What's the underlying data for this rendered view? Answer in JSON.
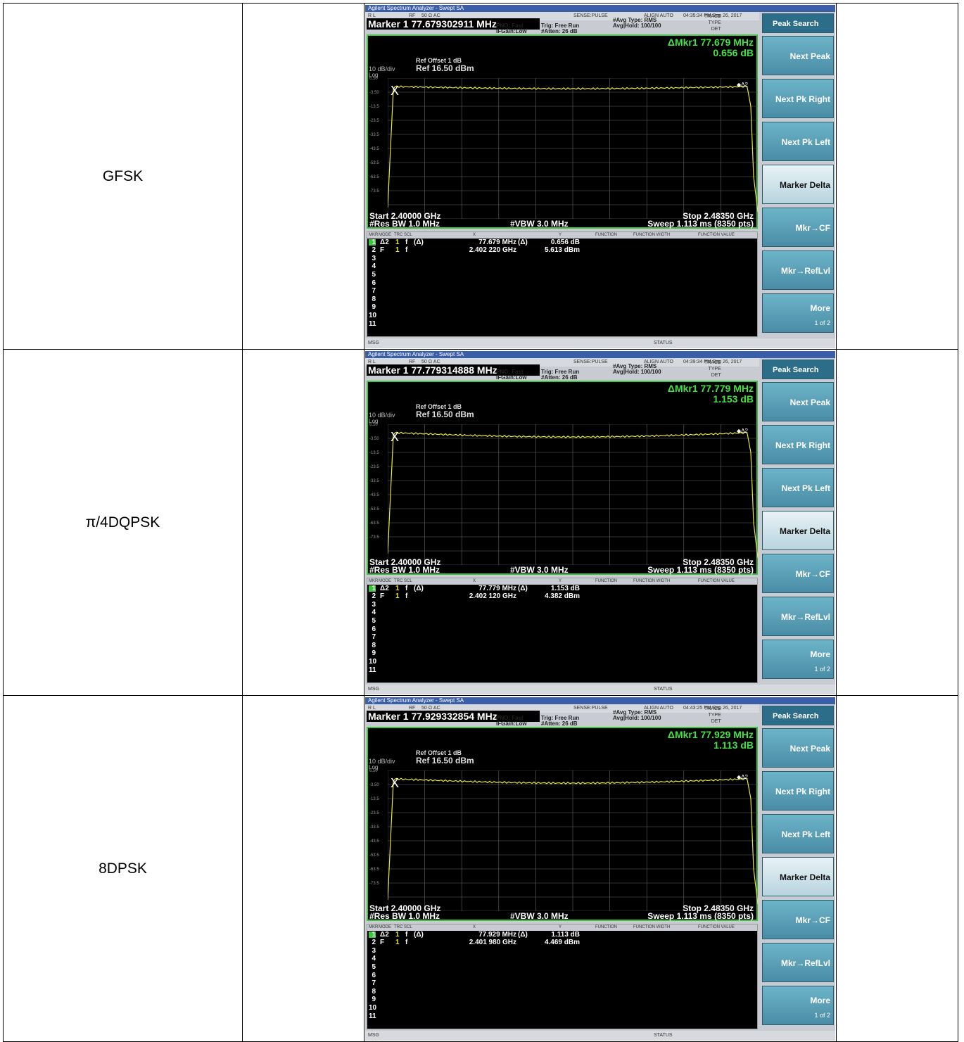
{
  "rows": [
    {
      "modulation": "GFSK",
      "screen": {
        "title": "Agilent Spectrum Analyzer - Swept SA",
        "status": {
          "rl": "R L",
          "rf": "RF",
          "ohm": "50 Ω  AC",
          "sense": "SENSE:PULSE",
          "align": "ALIGN AUTO",
          "time": "04:35:34 PM Sep 26, 2017"
        },
        "marker": "Marker 1 77.679302911 MHz",
        "pno": "PNO: Fast",
        "ifgain": "IFGain:Low",
        "trig": "Trig: Free Run",
        "atten": "#Atten: 26 dB",
        "avgtype": "#Avg Type: RMS",
        "avghold": "Avg|Hold: 100/100",
        "trace_labels": "TRACE\nTYPE\nDET",
        "ref_offset": "Ref Offset 1 dB",
        "scale": "10 dB/div",
        "ref": "Ref 16.50 dBm",
        "log": "Log",
        "delta_marker": "ΔMkr1 77.679 MHz",
        "delta_value": "0.656 dB",
        "y_ticks": [
          "6.50",
          "-3.50",
          "-13.5",
          "-23.5",
          "-33.5",
          "-43.5",
          "-53.5",
          "-63.5",
          "-73.5"
        ],
        "start": "Start 2.40000 GHz",
        "stop": "Stop 2.48350 GHz",
        "rbw": "#Res BW 1.0 MHz",
        "vbw": "#VBW 3.0 MHz",
        "sweep": "Sweep  1.113 ms (8350 pts)",
        "table_headers": [
          "MKR",
          "MODE",
          "TRC",
          "SCL",
          "X",
          "Y",
          "FUNCTION",
          "FUNCTION WIDTH",
          "FUNCTION VALUE"
        ],
        "markers": [
          {
            "n": "1",
            "mode": "Δ2",
            "trc": "1",
            "scl": "f",
            "dx": "(Δ)",
            "x": "77.679 MHz",
            "dy": "(Δ)",
            "y": "0.656 dB"
          },
          {
            "n": "2",
            "mode": "F",
            "trc": "1",
            "scl": "f",
            "dx": "",
            "x": "2.402 220 GHz",
            "dy": "",
            "y": "5.613 dBm"
          }
        ],
        "msg": "MSG",
        "statuslbl": "STATUS"
      }
    },
    {
      "modulation": "π/4DQPSK",
      "screen": {
        "title": "Agilent Spectrum Analyzer - Swept SA",
        "status": {
          "rl": "R L",
          "rf": "RF",
          "ohm": "50 Ω  AC",
          "sense": "SENSE:PULSE",
          "align": "ALIGN AUTO",
          "time": "04:39:34 PM Sep 26, 2017"
        },
        "marker": "Marker 1 77.779314888 MHz",
        "pno": "PNO: Fast",
        "ifgain": "IFGain:Low",
        "trig": "Trig: Free Run",
        "atten": "#Atten: 26 dB",
        "avgtype": "#Avg Type: RMS",
        "avghold": "Avg|Hold: 100/100",
        "trace_labels": "TRACE\nTYPE\nDET",
        "ref_offset": "Ref Offset 1 dB",
        "scale": "10 dB/div",
        "ref": "Ref 16.50 dBm",
        "log": "Log",
        "delta_marker": "ΔMkr1 77.779 MHz",
        "delta_value": "1.153 dB",
        "y_ticks": [
          "6.50",
          "-3.50",
          "-13.5",
          "-23.5",
          "-33.5",
          "-43.5",
          "-53.5",
          "-63.5",
          "-73.5"
        ],
        "start": "Start 2.40000 GHz",
        "stop": "Stop 2.48350 GHz",
        "rbw": "#Res BW 1.0 MHz",
        "vbw": "#VBW 3.0 MHz",
        "sweep": "Sweep  1.113 ms (8350 pts)",
        "table_headers": [
          "MKR",
          "MODE",
          "TRC",
          "SCL",
          "X",
          "Y",
          "FUNCTION",
          "FUNCTION WIDTH",
          "FUNCTION VALUE"
        ],
        "markers": [
          {
            "n": "1",
            "mode": "Δ2",
            "trc": "1",
            "scl": "f",
            "dx": "(Δ)",
            "x": "77.779 MHz",
            "dy": "(Δ)",
            "y": "1.153 dB"
          },
          {
            "n": "2",
            "mode": "F",
            "trc": "1",
            "scl": "f",
            "dx": "",
            "x": "2.402 120 GHz",
            "dy": "",
            "y": "4.382 dBm"
          }
        ],
        "msg": "MSG",
        "statuslbl": "STATUS"
      }
    },
    {
      "modulation": "8DPSK",
      "screen": {
        "title": "Agilent Spectrum Analyzer - Swept SA",
        "status": {
          "rl": "R L",
          "rf": "RF",
          "ohm": "50 Ω  AC",
          "sense": "SENSE:PULSE",
          "align": "ALIGN AUTO",
          "time": "04:43:25 PM Sep 26, 2017"
        },
        "marker": "Marker 1 77.929332854 MHz",
        "pno": "PNO: Fast",
        "ifgain": "IFGain:Low",
        "trig": "Trig: Free Run",
        "atten": "#Atten: 26 dB",
        "avgtype": "#Avg Type: RMS",
        "avghold": "Avg|Hold: 100/100",
        "trace_labels": "TRACE\nTYPE\nDET",
        "ref_offset": "Ref Offset 1 dB",
        "scale": "10 dB/div",
        "ref": "Ref 16.50 dBm",
        "log": "Log",
        "delta_marker": "ΔMkr1 77.929 MHz",
        "delta_value": "1.113 dB",
        "y_ticks": [
          "6.50",
          "-3.50",
          "-13.5",
          "-23.5",
          "-33.5",
          "-43.5",
          "-53.5",
          "-63.5",
          "-73.5"
        ],
        "start": "Start 2.40000 GHz",
        "stop": "Stop 2.48350 GHz",
        "rbw": "#Res BW 1.0 MHz",
        "vbw": "#VBW 3.0 MHz",
        "sweep": "Sweep  1.113 ms (8350 pts)",
        "table_headers": [
          "MKR",
          "MODE",
          "TRC",
          "SCL",
          "X",
          "Y",
          "FUNCTION",
          "FUNCTION WIDTH",
          "FUNCTION VALUE"
        ],
        "markers": [
          {
            "n": "1",
            "mode": "Δ2",
            "trc": "1",
            "scl": "f",
            "dx": "(Δ)",
            "x": "77.929 MHz",
            "dy": "(Δ)",
            "y": "1.113 dB"
          },
          {
            "n": "2",
            "mode": "F",
            "trc": "1",
            "scl": "f",
            "dx": "",
            "x": "2.401 980 GHz",
            "dy": "",
            "y": "4.469 dBm"
          }
        ],
        "msg": "MSG",
        "statuslbl": "STATUS"
      }
    }
  ],
  "softkeys": {
    "header": "Peak Search",
    "keys": [
      "Next Peak",
      "Next Pk Right",
      "Next Pk Left",
      "Marker Delta",
      "Mkr→CF",
      "Mkr→RefLvl",
      "More"
    ],
    "more_sub": "1 of 2"
  },
  "row_numbers": [
    "1",
    "2",
    "3",
    "4",
    "5",
    "6",
    "7",
    "8",
    "9",
    "10",
    "11"
  ],
  "colors": {
    "trace": "#e8e83a",
    "plot_border": "#3cc43c",
    "delta": "#44e044"
  }
}
